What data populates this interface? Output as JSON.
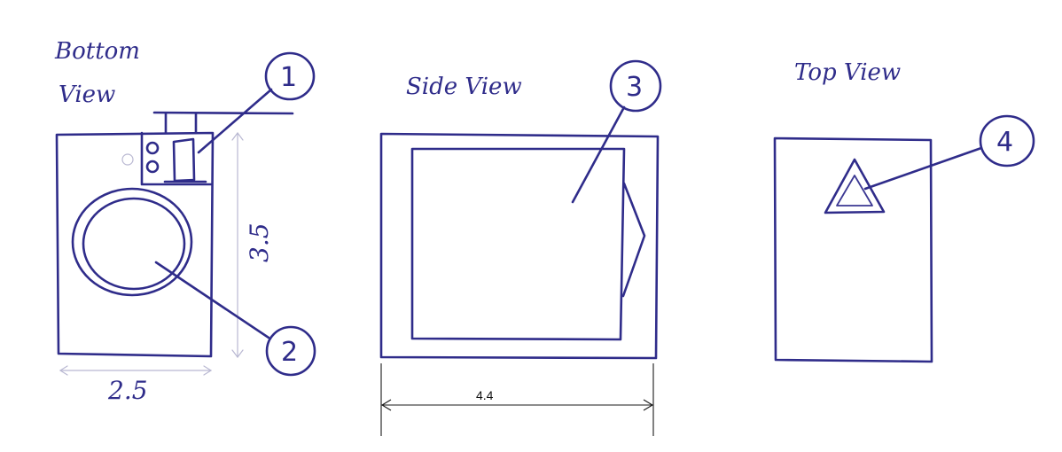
{
  "views": {
    "bottom": {
      "title_line1": "Bottom",
      "title_line2": "View",
      "width_label": "2.5",
      "height_label": "3.5"
    },
    "side": {
      "title": "Side View",
      "width_label": "4.4"
    },
    "top": {
      "title": "Top View"
    }
  },
  "callouts": [
    "1",
    "2",
    "3",
    "4"
  ],
  "colors": {
    "ink": "#2f2c8a",
    "dimension": "#1a1a1a"
  }
}
